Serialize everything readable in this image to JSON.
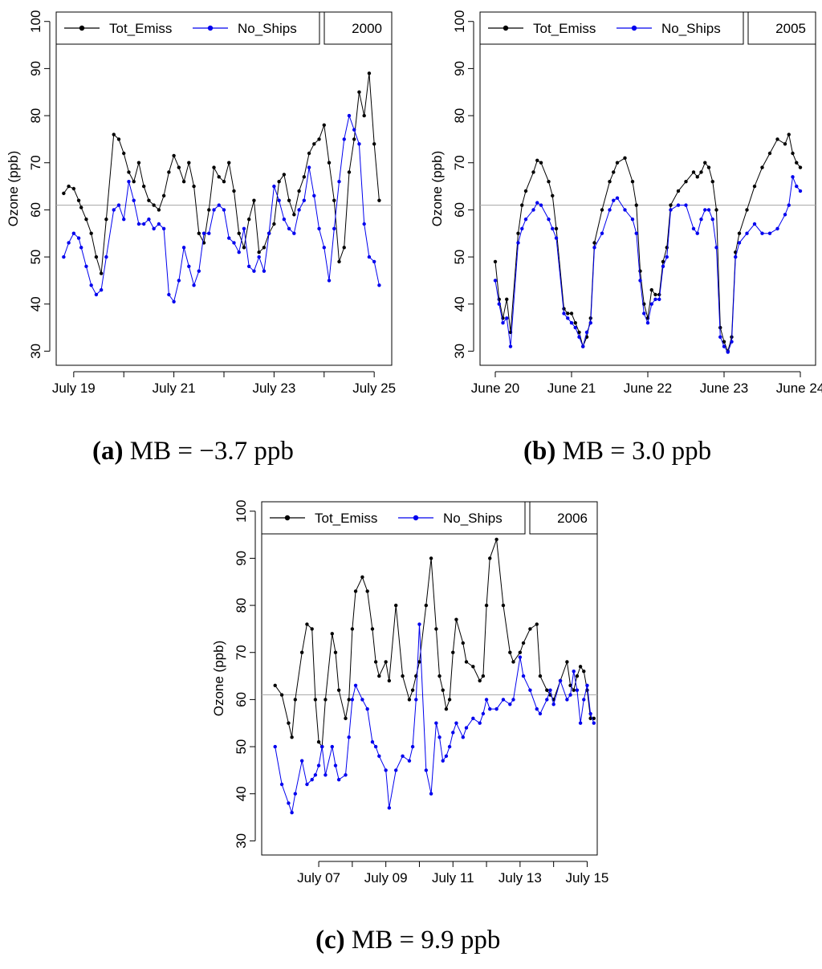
{
  "captions": [
    {
      "letter": "a",
      "text": "MB = −3.7 ppb"
    },
    {
      "letter": "b",
      "text": "MB = 3.0 ppb"
    },
    {
      "letter": "c",
      "text": "MB = 9.9 ppb"
    }
  ],
  "colors": {
    "tot_emiss": "#000000",
    "no_ships": "#0000ee",
    "reference_line": "#aaaaaa"
  },
  "chart_data": [
    {
      "type": "line",
      "ylabel": "Ozone (ppb)",
      "ylim": [
        27,
        102
      ],
      "yticks": [
        30,
        40,
        50,
        60,
        70,
        80,
        90,
        100
      ],
      "legend": {
        "placement": "top",
        "entries": [
          "Tot_Emiss",
          "No_Ships"
        ],
        "year": "2000"
      },
      "reference_line": 61,
      "xlim": [
        -0.35,
        6.35
      ],
      "xticks": [
        {
          "x": 0.0,
          "label": "July 19"
        },
        {
          "x": 2.0,
          "label": "July 21"
        },
        {
          "x": 4.0,
          "label": "July 23"
        },
        {
          "x": 6.0,
          "label": "July 25"
        }
      ],
      "minor_ticks": [
        1.0,
        3.0,
        5.0
      ],
      "series": [
        {
          "name": "Tot_Emiss",
          "color": "#000000",
          "x": [
            -0.2,
            -0.1,
            0.0,
            0.1,
            0.15,
            0.25,
            0.35,
            0.45,
            0.55,
            0.65,
            0.8,
            0.9,
            1.0,
            1.1,
            1.2,
            1.3,
            1.4,
            1.5,
            1.6,
            1.7,
            1.8,
            1.9,
            2.0,
            2.1,
            2.2,
            2.3,
            2.4,
            2.5,
            2.6,
            2.7,
            2.8,
            2.9,
            3.0,
            3.1,
            3.2,
            3.3,
            3.4,
            3.5,
            3.6,
            3.7,
            3.8,
            3.9,
            4.0,
            4.1,
            4.2,
            4.3,
            4.4,
            4.5,
            4.6,
            4.7,
            4.8,
            4.9,
            5.0,
            5.1,
            5.2,
            5.3,
            5.4,
            5.5,
            5.6,
            5.7,
            5.8,
            5.9,
            6.0,
            6.1
          ],
          "y": [
            63.5,
            65,
            64.5,
            62,
            60.5,
            58,
            55,
            50,
            46.5,
            58,
            76,
            75,
            72,
            68,
            66,
            70,
            65,
            62,
            61,
            60,
            63,
            68,
            71.5,
            69,
            66,
            70,
            65,
            55,
            53,
            60,
            69,
            67,
            66,
            70,
            64,
            55,
            52,
            58,
            62,
            51,
            52,
            55,
            57,
            66,
            67.5,
            62,
            59,
            64,
            67,
            72,
            74,
            75,
            78,
            70,
            62,
            49,
            52,
            68,
            75,
            85,
            80,
            89,
            74,
            62
          ]
        },
        {
          "name": "No_Ships",
          "color": "#0000ee",
          "x": [
            -0.2,
            -0.1,
            0.0,
            0.1,
            0.15,
            0.25,
            0.35,
            0.45,
            0.55,
            0.65,
            0.8,
            0.9,
            1.0,
            1.1,
            1.2,
            1.3,
            1.4,
            1.5,
            1.6,
            1.7,
            1.8,
            1.9,
            2.0,
            2.1,
            2.2,
            2.3,
            2.4,
            2.5,
            2.6,
            2.7,
            2.8,
            2.9,
            3.0,
            3.1,
            3.2,
            3.3,
            3.4,
            3.5,
            3.6,
            3.7,
            3.8,
            3.9,
            4.0,
            4.1,
            4.2,
            4.3,
            4.4,
            4.5,
            4.6,
            4.7,
            4.8,
            4.9,
            5.0,
            5.1,
            5.2,
            5.3,
            5.4,
            5.5,
            5.6,
            5.7,
            5.8,
            5.9,
            6.0,
            6.1
          ],
          "y": [
            50,
            53,
            55,
            54,
            52,
            48,
            44,
            42,
            43,
            50,
            60,
            61,
            58,
            66,
            62,
            57,
            57,
            58,
            56,
            57,
            56,
            42,
            40.5,
            45,
            52,
            48,
            44,
            47,
            55,
            55,
            60,
            61,
            60,
            54,
            53,
            51,
            56,
            48,
            47,
            50,
            47,
            55,
            65,
            62,
            58,
            56,
            55,
            60,
            62,
            69,
            63,
            56,
            52,
            45,
            56,
            66,
            75,
            80,
            77,
            74,
            57,
            50,
            49,
            44
          ]
        }
      ]
    },
    {
      "type": "line",
      "ylabel": "Ozone (ppb)",
      "ylim": [
        27,
        102
      ],
      "yticks": [
        30,
        40,
        50,
        60,
        70,
        80,
        90,
        100
      ],
      "legend": {
        "placement": "top",
        "entries": [
          "Tot_Emiss",
          "No_Ships"
        ],
        "year": "2005"
      },
      "reference_line": 61,
      "xlim": [
        -0.2,
        4.2
      ],
      "xticks": [
        {
          "x": 0.0,
          "label": "June 20"
        },
        {
          "x": 1.0,
          "label": "June 21"
        },
        {
          "x": 2.0,
          "label": "June 22"
        },
        {
          "x": 3.0,
          "label": "June 23"
        },
        {
          "x": 4.0,
          "label": "June 24"
        }
      ],
      "minor_ticks": [],
      "series": [
        {
          "name": "Tot_Emiss",
          "color": "#000000",
          "x": [
            0.0,
            0.05,
            0.1,
            0.15,
            0.2,
            0.3,
            0.35,
            0.4,
            0.5,
            0.55,
            0.6,
            0.7,
            0.75,
            0.8,
            0.9,
            0.95,
            1.0,
            1.05,
            1.1,
            1.15,
            1.2,
            1.25,
            1.3,
            1.4,
            1.5,
            1.55,
            1.6,
            1.7,
            1.8,
            1.85,
            1.9,
            1.95,
            2.0,
            2.05,
            2.1,
            2.15,
            2.2,
            2.25,
            2.3,
            2.4,
            2.5,
            2.6,
            2.65,
            2.7,
            2.75,
            2.8,
            2.85,
            2.9,
            2.95,
            3.0,
            3.05,
            3.1,
            3.15,
            3.2,
            3.3,
            3.4,
            3.5,
            3.6,
            3.7,
            3.8,
            3.85,
            3.9,
            3.95,
            4.0
          ],
          "y": [
            49,
            41,
            37,
            41,
            34,
            55,
            61,
            64,
            68,
            70.5,
            70,
            66,
            63,
            56,
            39,
            38,
            38,
            36,
            34,
            31,
            33,
            37,
            53,
            60,
            66,
            68,
            70,
            71,
            66,
            61,
            47,
            40,
            37,
            43,
            42,
            42,
            49,
            52,
            61,
            64,
            66,
            68,
            67,
            68,
            70,
            69,
            66,
            60,
            35,
            32,
            30,
            33,
            51,
            55,
            60,
            65,
            69,
            72,
            75,
            74,
            76,
            72,
            70,
            69
          ]
        },
        {
          "name": "No_Ships",
          "color": "#0000ee",
          "x": [
            0.0,
            0.05,
            0.1,
            0.15,
            0.2,
            0.3,
            0.35,
            0.4,
            0.5,
            0.55,
            0.6,
            0.7,
            0.75,
            0.8,
            0.9,
            0.95,
            1.0,
            1.05,
            1.1,
            1.15,
            1.2,
            1.25,
            1.3,
            1.4,
            1.5,
            1.55,
            1.6,
            1.7,
            1.8,
            1.85,
            1.9,
            1.95,
            2.0,
            2.05,
            2.1,
            2.15,
            2.2,
            2.25,
            2.3,
            2.4,
            2.5,
            2.6,
            2.65,
            2.7,
            2.75,
            2.8,
            2.85,
            2.9,
            2.95,
            3.0,
            3.05,
            3.1,
            3.15,
            3.2,
            3.3,
            3.4,
            3.5,
            3.6,
            3.7,
            3.8,
            3.85,
            3.9,
            3.95,
            4.0
          ],
          "y": [
            45,
            40,
            36,
            37,
            31,
            53,
            56,
            58,
            60,
            61.5,
            61,
            58,
            56,
            54,
            38,
            37,
            36,
            35,
            33,
            31,
            34,
            36,
            52,
            55,
            60,
            62,
            62.5,
            60,
            58,
            55,
            45,
            38,
            36,
            40,
            41,
            41,
            48,
            50,
            60,
            61,
            61,
            56,
            55,
            58,
            60,
            60,
            58,
            52,
            33,
            31,
            29.8,
            32,
            50,
            53,
            55,
            57,
            55,
            55,
            56,
            59,
            61,
            67,
            65,
            64
          ]
        }
      ]
    },
    {
      "type": "line",
      "ylabel": "Ozone (ppb)",
      "ylim": [
        27,
        102
      ],
      "yticks": [
        30,
        40,
        50,
        60,
        70,
        80,
        90,
        100
      ],
      "legend": {
        "placement": "top",
        "entries": [
          "Tot_Emiss",
          "No_Ships"
        ],
        "year": "2006"
      },
      "reference_line": 61,
      "xlim": [
        -1.7,
        8.3
      ],
      "xticks": [
        {
          "x": 0.0,
          "label": "July 07"
        },
        {
          "x": 2.0,
          "label": "July 09"
        },
        {
          "x": 4.0,
          "label": "July 11"
        },
        {
          "x": 6.0,
          "label": "July 13"
        },
        {
          "x": 8.0,
          "label": "July 15"
        }
      ],
      "minor_ticks": [
        1.0,
        3.0,
        5.0,
        7.0
      ],
      "series": [
        {
          "name": "Tot_Emiss",
          "color": "#000000",
          "x": [
            -1.3,
            -1.1,
            -0.9,
            -0.8,
            -0.7,
            -0.5,
            -0.35,
            -0.2,
            -0.1,
            0.0,
            0.1,
            0.2,
            0.4,
            0.5,
            0.6,
            0.8,
            0.9,
            1.0,
            1.1,
            1.3,
            1.45,
            1.6,
            1.7,
            1.8,
            2.0,
            2.1,
            2.3,
            2.5,
            2.7,
            2.8,
            2.9,
            3.0,
            3.2,
            3.35,
            3.5,
            3.6,
            3.7,
            3.8,
            3.9,
            4.0,
            4.1,
            4.3,
            4.4,
            4.6,
            4.8,
            4.9,
            5.0,
            5.1,
            5.3,
            5.5,
            5.7,
            5.8,
            6.0,
            6.1,
            6.3,
            6.5,
            6.6,
            6.8,
            6.9,
            7.0,
            7.2,
            7.4,
            7.5,
            7.6,
            7.7,
            7.8,
            7.9,
            8.0,
            8.1,
            8.2
          ],
          "y": [
            63,
            61,
            55,
            52,
            60,
            70,
            76,
            75,
            60,
            51,
            50,
            60,
            74,
            70,
            62,
            56,
            60,
            75,
            83,
            86,
            83,
            75,
            68,
            65,
            68,
            64,
            80,
            65,
            60,
            62,
            65,
            68,
            80,
            90,
            75,
            65,
            62,
            58,
            60,
            70,
            77,
            72,
            68,
            67,
            64,
            65,
            80,
            90,
            94,
            80,
            70,
            68,
            70,
            72,
            75,
            76,
            65,
            62,
            61,
            60,
            64,
            68,
            63,
            62,
            65,
            67,
            66,
            62,
            56,
            56
          ]
        },
        {
          "name": "No_Ships",
          "color": "#0000ee",
          "x": [
            -1.3,
            -1.1,
            -0.9,
            -0.8,
            -0.7,
            -0.5,
            -0.35,
            -0.2,
            -0.1,
            0.0,
            0.1,
            0.2,
            0.4,
            0.5,
            0.6,
            0.8,
            0.9,
            1.0,
            1.1,
            1.3,
            1.45,
            1.6,
            1.7,
            1.8,
            2.0,
            2.1,
            2.3,
            2.5,
            2.7,
            2.8,
            2.9,
            3.0,
            3.2,
            3.35,
            3.5,
            3.6,
            3.7,
            3.8,
            3.9,
            4.0,
            4.1,
            4.3,
            4.4,
            4.6,
            4.8,
            4.9,
            5.0,
            5.1,
            5.3,
            5.5,
            5.7,
            5.8,
            6.0,
            6.1,
            6.3,
            6.5,
            6.6,
            6.8,
            6.9,
            7.0,
            7.2,
            7.4,
            7.5,
            7.6,
            7.7,
            7.8,
            7.9,
            8.0,
            8.1,
            8.2
          ],
          "y": [
            50,
            42,
            38,
            36,
            40,
            47,
            42,
            43,
            44,
            46,
            50,
            44,
            50,
            46,
            43,
            44,
            52,
            60,
            63,
            60,
            58,
            51,
            50,
            48,
            45,
            37,
            45,
            48,
            47,
            50,
            60,
            76,
            45,
            40,
            55,
            52,
            47,
            48,
            50,
            53,
            55,
            52,
            54,
            56,
            55,
            57,
            60,
            58,
            58,
            60,
            59,
            60,
            69,
            65,
            62,
            58,
            57,
            60,
            62,
            59,
            64,
            60,
            61,
            66,
            62,
            55,
            60,
            63,
            57,
            55
          ]
        }
      ]
    }
  ]
}
